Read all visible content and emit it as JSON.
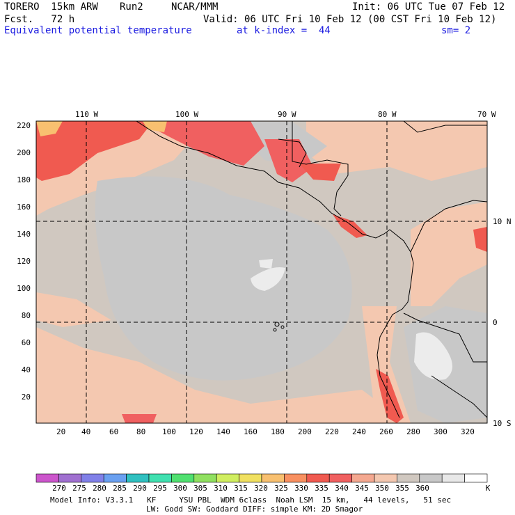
{
  "header": {
    "model": "TORERO  15km ARW",
    "run": "Run2",
    "org": "NCAR/MMM",
    "init": "Init: 06 UTC Tue 07 Feb 12",
    "fcst": "Fcst.   72 h",
    "valid": "Valid: 06 UTC Fri 10 Feb 12 (00 CST Fri 10 Feb 12)",
    "field": "Equivalent potential temperature",
    "level": "at k-index =  44",
    "smooth": "sm= 2"
  },
  "map": {
    "lon_labels": [
      "110 W",
      "100 W",
      "90 W",
      "80 W",
      "70 W"
    ],
    "lat_labels": [
      "10 N",
      "0",
      "10 S"
    ],
    "y_ticks": [
      "220",
      "200",
      "180",
      "160",
      "140",
      "120",
      "100",
      "80",
      "60",
      "40",
      "20"
    ],
    "x_ticks": [
      "20",
      "40",
      "60",
      "80",
      "100",
      "120",
      "140",
      "160",
      "180",
      "200",
      "220",
      "240",
      "260",
      "280",
      "300",
      "320"
    ],
    "grid_x_range": [
      1,
      330
    ],
    "grid_y_range": [
      1,
      222
    ],
    "dominant_range_K": "345-355",
    "warm_regions_K": "325-340"
  },
  "colorbar": {
    "levels": [
      "270",
      "275",
      "280",
      "285",
      "290",
      "295",
      "300",
      "305",
      "310",
      "315",
      "320",
      "325",
      "330",
      "335",
      "340",
      "345",
      "350",
      "355",
      "360"
    ],
    "unit": "K",
    "colors": [
      "#cc55cc",
      "#a070d0",
      "#8080e8",
      "#6aa0f0",
      "#30c0c0",
      "#40e0b0",
      "#50e070",
      "#90e060",
      "#d0ee60",
      "#f0e060",
      "#f8c070",
      "#f89060",
      "#f05a50",
      "#f06060",
      "#f4a890",
      "#f4c8b0",
      "#d0c8c0",
      "#c8c8c8",
      "#e8e8e8",
      "#ffffff"
    ]
  },
  "footer": {
    "line1": "Model Info: V3.3.1   KF     YSU PBL  WDM 6class  Noah LSM  15 km,   44 levels,   51 sec",
    "line2": "LW: Godd SW: Goddard DIFF: simple KM: 2D Smagor"
  }
}
